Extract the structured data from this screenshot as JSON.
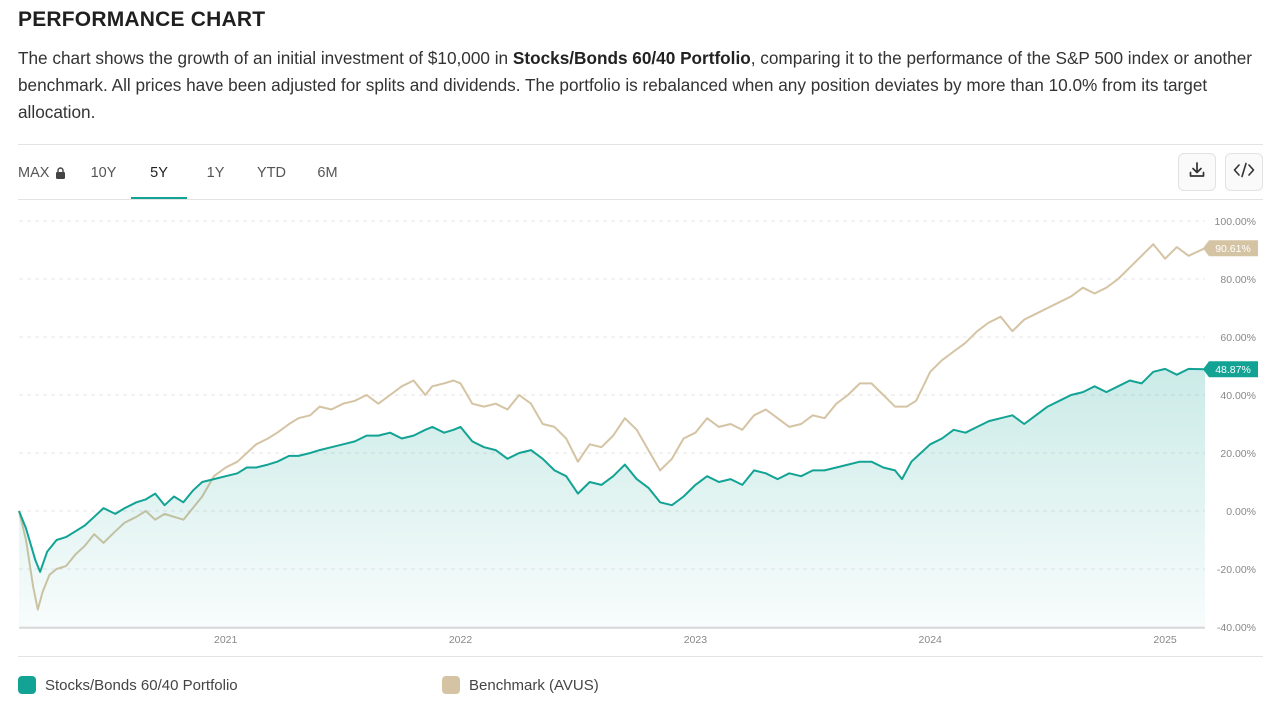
{
  "header": {
    "title": "PERFORMANCE CHART",
    "desc_part1": "The chart shows the growth of an initial investment of $10,000 in ",
    "desc_bold": "Stocks/Bonds 60/40 Portfolio",
    "desc_part2": ", comparing it to the performance of the S&P 500 index or another benchmark. All prices have been adjusted for splits and dividends. The portfolio is rebalanced when any position deviates by more than 10.0% from its target allocation."
  },
  "tabs": [
    {
      "label": "MAX",
      "locked": true
    },
    {
      "label": "10Y"
    },
    {
      "label": "5Y",
      "active": true
    },
    {
      "label": "1Y"
    },
    {
      "label": "YTD"
    },
    {
      "label": "6M"
    }
  ],
  "toolbar": {
    "download_icon": "download-icon",
    "embed_icon": "code-icon"
  },
  "colors": {
    "portfolio": "#12a394",
    "benchmark": "#d5c4a4",
    "accent": "#12a394"
  },
  "chart_data": {
    "type": "line",
    "ylim": [
      -40,
      100
    ],
    "y_ticks": [
      "100.00%",
      "80.00%",
      "60.00%",
      "40.00%",
      "20.00%",
      "0.00%",
      "-20.00%",
      "-40.00%"
    ],
    "x_ticks": [
      {
        "label": "2021",
        "x": 2021.0
      },
      {
        "label": "2022",
        "x": 2022.0
      },
      {
        "label": "2023",
        "x": 2023.0
      },
      {
        "label": "2024",
        "x": 2024.0
      },
      {
        "label": "2025",
        "x": 2025.0
      }
    ],
    "x_range": [
      2020.12,
      2025.17
    ],
    "series": [
      {
        "name": "Stocks/Bonds 60/40 Portfolio",
        "end_label": "48.87%",
        "area": true,
        "points": [
          [
            2020.12,
            0
          ],
          [
            2020.15,
            -6
          ],
          [
            2020.19,
            -17
          ],
          [
            2020.21,
            -21
          ],
          [
            2020.24,
            -14
          ],
          [
            2020.28,
            -10
          ],
          [
            2020.32,
            -9
          ],
          [
            2020.36,
            -7
          ],
          [
            2020.4,
            -5
          ],
          [
            2020.44,
            -2
          ],
          [
            2020.48,
            1
          ],
          [
            2020.53,
            -1
          ],
          [
            2020.57,
            1
          ],
          [
            2020.62,
            3
          ],
          [
            2020.66,
            4
          ],
          [
            2020.7,
            6
          ],
          [
            2020.74,
            2
          ],
          [
            2020.78,
            5
          ],
          [
            2020.82,
            3
          ],
          [
            2020.86,
            7
          ],
          [
            2020.9,
            10
          ],
          [
            2020.95,
            11
          ],
          [
            2021.0,
            12
          ],
          [
            2021.05,
            13
          ],
          [
            2021.09,
            15
          ],
          [
            2021.13,
            15
          ],
          [
            2021.18,
            16
          ],
          [
            2021.22,
            17
          ],
          [
            2021.27,
            19
          ],
          [
            2021.31,
            19
          ],
          [
            2021.36,
            20
          ],
          [
            2021.4,
            21
          ],
          [
            2021.45,
            22
          ],
          [
            2021.5,
            23
          ],
          [
            2021.55,
            24
          ],
          [
            2021.6,
            26
          ],
          [
            2021.65,
            26
          ],
          [
            2021.7,
            27
          ],
          [
            2021.75,
            25
          ],
          [
            2021.8,
            26
          ],
          [
            2021.85,
            28
          ],
          [
            2021.88,
            29
          ],
          [
            2021.93,
            27
          ],
          [
            2021.97,
            28
          ],
          [
            2022.0,
            29
          ],
          [
            2022.05,
            24
          ],
          [
            2022.1,
            22
          ],
          [
            2022.15,
            21
          ],
          [
            2022.2,
            18
          ],
          [
            2022.25,
            20
          ],
          [
            2022.3,
            21
          ],
          [
            2022.35,
            18
          ],
          [
            2022.4,
            14
          ],
          [
            2022.45,
            12
          ],
          [
            2022.5,
            6
          ],
          [
            2022.55,
            10
          ],
          [
            2022.6,
            9
          ],
          [
            2022.65,
            12
          ],
          [
            2022.7,
            16
          ],
          [
            2022.75,
            11
          ],
          [
            2022.8,
            8
          ],
          [
            2022.85,
            3
          ],
          [
            2022.9,
            2
          ],
          [
            2022.95,
            5
          ],
          [
            2023.0,
            9
          ],
          [
            2023.05,
            12
          ],
          [
            2023.1,
            10
          ],
          [
            2023.15,
            11
          ],
          [
            2023.2,
            9
          ],
          [
            2023.25,
            14
          ],
          [
            2023.3,
            13
          ],
          [
            2023.35,
            11
          ],
          [
            2023.4,
            13
          ],
          [
            2023.45,
            12
          ],
          [
            2023.5,
            14
          ],
          [
            2023.55,
            14
          ],
          [
            2023.6,
            15
          ],
          [
            2023.65,
            16
          ],
          [
            2023.7,
            17
          ],
          [
            2023.75,
            17
          ],
          [
            2023.8,
            15
          ],
          [
            2023.85,
            14
          ],
          [
            2023.88,
            11
          ],
          [
            2023.92,
            17
          ],
          [
            2023.96,
            20
          ],
          [
            2024.0,
            23
          ],
          [
            2024.05,
            25
          ],
          [
            2024.1,
            28
          ],
          [
            2024.15,
            27
          ],
          [
            2024.2,
            29
          ],
          [
            2024.25,
            31
          ],
          [
            2024.3,
            32
          ],
          [
            2024.35,
            33
          ],
          [
            2024.4,
            30
          ],
          [
            2024.45,
            33
          ],
          [
            2024.5,
            36
          ],
          [
            2024.55,
            38
          ],
          [
            2024.6,
            40
          ],
          [
            2024.65,
            41
          ],
          [
            2024.7,
            43
          ],
          [
            2024.75,
            41
          ],
          [
            2024.8,
            43
          ],
          [
            2024.85,
            45
          ],
          [
            2024.9,
            44
          ],
          [
            2024.95,
            48
          ],
          [
            2025.0,
            49
          ],
          [
            2025.05,
            47
          ],
          [
            2025.1,
            49
          ],
          [
            2025.17,
            48.87
          ]
        ]
      },
      {
        "name": "Benchmark (AVUS)",
        "end_label": "90.61%",
        "area": false,
        "points": [
          [
            2020.12,
            0
          ],
          [
            2020.15,
            -10
          ],
          [
            2020.18,
            -26
          ],
          [
            2020.2,
            -34
          ],
          [
            2020.22,
            -28
          ],
          [
            2020.25,
            -22
          ],
          [
            2020.28,
            -20
          ],
          [
            2020.32,
            -19
          ],
          [
            2020.36,
            -15
          ],
          [
            2020.4,
            -12
          ],
          [
            2020.44,
            -8
          ],
          [
            2020.48,
            -11
          ],
          [
            2020.53,
            -7
          ],
          [
            2020.57,
            -4
          ],
          [
            2020.62,
            -2
          ],
          [
            2020.66,
            0
          ],
          [
            2020.7,
            -3
          ],
          [
            2020.74,
            -1
          ],
          [
            2020.78,
            -2
          ],
          [
            2020.82,
            -3
          ],
          [
            2020.86,
            1
          ],
          [
            2020.9,
            5
          ],
          [
            2020.95,
            12
          ],
          [
            2021.0,
            15
          ],
          [
            2021.05,
            17
          ],
          [
            2021.09,
            20
          ],
          [
            2021.13,
            23
          ],
          [
            2021.18,
            25
          ],
          [
            2021.22,
            27
          ],
          [
            2021.27,
            30
          ],
          [
            2021.31,
            32
          ],
          [
            2021.36,
            33
          ],
          [
            2021.4,
            36
          ],
          [
            2021.45,
            35
          ],
          [
            2021.5,
            37
          ],
          [
            2021.55,
            38
          ],
          [
            2021.6,
            40
          ],
          [
            2021.65,
            37
          ],
          [
            2021.7,
            40
          ],
          [
            2021.75,
            43
          ],
          [
            2021.8,
            45
          ],
          [
            2021.85,
            40
          ],
          [
            2021.88,
            43
          ],
          [
            2021.93,
            44
          ],
          [
            2021.97,
            45
          ],
          [
            2022.0,
            44
          ],
          [
            2022.05,
            37
          ],
          [
            2022.1,
            36
          ],
          [
            2022.15,
            37
          ],
          [
            2022.2,
            35
          ],
          [
            2022.25,
            40
          ],
          [
            2022.3,
            37
          ],
          [
            2022.35,
            30
          ],
          [
            2022.4,
            29
          ],
          [
            2022.45,
            25
          ],
          [
            2022.5,
            17
          ],
          [
            2022.55,
            23
          ],
          [
            2022.6,
            22
          ],
          [
            2022.65,
            26
          ],
          [
            2022.7,
            32
          ],
          [
            2022.75,
            28
          ],
          [
            2022.8,
            21
          ],
          [
            2022.85,
            14
          ],
          [
            2022.9,
            18
          ],
          [
            2022.95,
            25
          ],
          [
            2023.0,
            27
          ],
          [
            2023.05,
            32
          ],
          [
            2023.1,
            29
          ],
          [
            2023.15,
            30
          ],
          [
            2023.2,
            28
          ],
          [
            2023.25,
            33
          ],
          [
            2023.3,
            35
          ],
          [
            2023.35,
            32
          ],
          [
            2023.4,
            29
          ],
          [
            2023.45,
            30
          ],
          [
            2023.5,
            33
          ],
          [
            2023.55,
            32
          ],
          [
            2023.6,
            37
          ],
          [
            2023.65,
            40
          ],
          [
            2023.7,
            44
          ],
          [
            2023.75,
            44
          ],
          [
            2023.8,
            40
          ],
          [
            2023.85,
            36
          ],
          [
            2023.9,
            36
          ],
          [
            2023.94,
            38
          ],
          [
            2023.97,
            43
          ],
          [
            2024.0,
            48
          ],
          [
            2024.05,
            52
          ],
          [
            2024.1,
            55
          ],
          [
            2024.15,
            58
          ],
          [
            2024.2,
            62
          ],
          [
            2024.25,
            65
          ],
          [
            2024.3,
            67
          ],
          [
            2024.35,
            62
          ],
          [
            2024.4,
            66
          ],
          [
            2024.45,
            68
          ],
          [
            2024.5,
            70
          ],
          [
            2024.55,
            72
          ],
          [
            2024.6,
            74
          ],
          [
            2024.65,
            77
          ],
          [
            2024.7,
            75
          ],
          [
            2024.75,
            77
          ],
          [
            2024.8,
            80
          ],
          [
            2024.85,
            84
          ],
          [
            2024.9,
            88
          ],
          [
            2024.95,
            92
          ],
          [
            2025.0,
            87
          ],
          [
            2025.05,
            91
          ],
          [
            2025.1,
            88
          ],
          [
            2025.17,
            90.61
          ]
        ]
      }
    ],
    "legend": [
      "Stocks/Bonds 60/40 Portfolio",
      "Benchmark (AVUS)"
    ]
  }
}
